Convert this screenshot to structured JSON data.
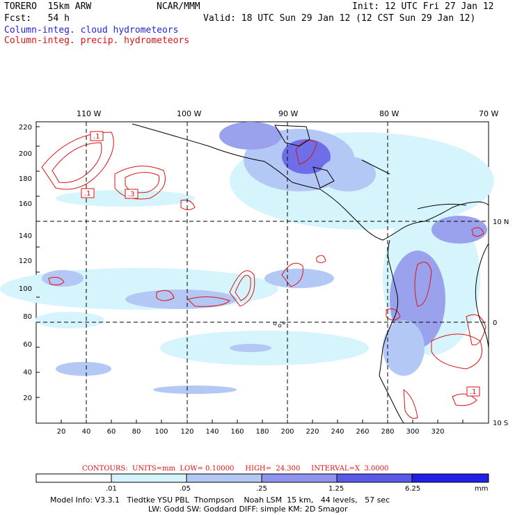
{
  "header": {
    "model": "TORERO  15km ARW",
    "org": "NCAR/MMM",
    "init": "Init: 12 UTC Fri 27 Jan 12",
    "fcst": "Fcst:   54 h",
    "valid": "Valid: 18 UTC Sun 29 Jan 12 (12 CST Sun 29 Jan 12)",
    "legend_cloud": "Column-integ. cloud hydrometeors",
    "legend_precip": "Column-integ. precip. hydrometeors"
  },
  "map": {
    "lon_labels": [
      "110 W",
      "100 W",
      "90 W",
      "80 W",
      "70 W"
    ],
    "lat_labels": [
      "10 N",
      "0",
      "10 S"
    ],
    "x_ticks": [
      "20",
      "40",
      "60",
      "80",
      "100",
      "120",
      "140",
      "160",
      "180",
      "200",
      "220",
      "240",
      "260",
      "280",
      "300",
      "320"
    ],
    "y_ticks": [
      "220",
      "200",
      "180",
      "160",
      "140",
      "120",
      "100",
      "80",
      "60",
      "40",
      "20"
    ],
    "contour_labels": [
      ".1",
      ".1",
      ".3",
      ".1"
    ]
  },
  "contour_info": {
    "text": "CONTOURS:  UNITS=mm  LOW= 0.10000     HIGH=  24.300     INTERVAL=X  3.0000"
  },
  "colorbar": {
    "labels": [
      ".01",
      ".05",
      ".25",
      "1.25",
      "6.25"
    ],
    "unit": "mm",
    "colors": [
      "#ffffff",
      "#d6f4fb",
      "#b4c8f5",
      "#9aa2ee",
      "#6e6ee8",
      "#4848e6",
      "#2020e8"
    ]
  },
  "footer": {
    "line1": "Model Info: V3.3.1   Tiedtke YSU PBL  Thompson    Noah LSM  15 km,   44 levels,   57 sec",
    "line2": "LW: Godd SW: Goddard DIFF: simple KM: 2D Smagor"
  }
}
